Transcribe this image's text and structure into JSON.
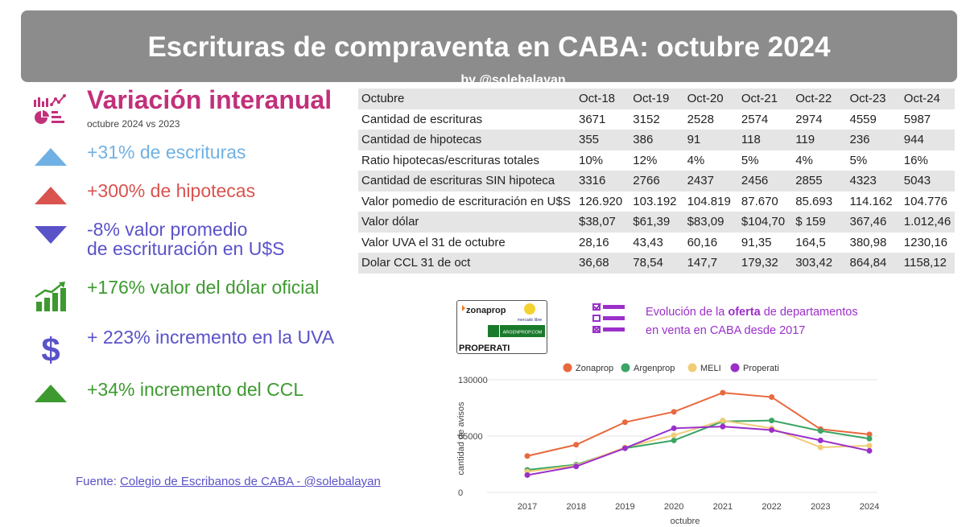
{
  "header": {
    "title": "Escrituras de compraventa en CABA:  octubre 2024",
    "byline": "by @solebalayan"
  },
  "highlights": {
    "title": "Variación  interanual",
    "subtitle": "octubre 2024 vs 2023",
    "items": [
      {
        "icon": "triangle-up-icon",
        "lines": [
          "+31% de escrituras"
        ],
        "color": "#6fb1e4"
      },
      {
        "icon": "triangle-up-icon",
        "lines": [
          "+300% de hipotecas"
        ],
        "color": "#d9534f"
      },
      {
        "icon": "triangle-down-icon",
        "lines": [
          "-8% valor promedio",
          "de escrituración en U$S"
        ],
        "color": "#5a52c8"
      },
      {
        "icon": "growth-chart-icon",
        "lines": [
          "+176% valor del dólar oficial"
        ],
        "color": "#3d9a2f"
      },
      {
        "icon": "dollar-sign-icon",
        "lines": [
          "+ 223% incremento en la UVA"
        ],
        "color": "#5a52c8"
      },
      {
        "icon": "triangle-up-icon",
        "lines": [
          "+34% incremento del CCL"
        ],
        "color": "#3d9a2f"
      }
    ]
  },
  "table": {
    "columns": [
      "Octubre",
      "Oct-18",
      "Oct-19",
      "Oct-20",
      "Oct-21",
      "Oct-22",
      "Oct-23",
      "Oct-24"
    ],
    "rows": [
      [
        "Cantidad de escrituras",
        "3671",
        "3152",
        "2528",
        "2574",
        "2974",
        "4559",
        "5987"
      ],
      [
        "Cantidad de hipotecas",
        "355",
        "386",
        "91",
        "118",
        "119",
        "236",
        "944"
      ],
      [
        "Ratio hipotecas/escrituras totales",
        "10%",
        "12%",
        "4%",
        "5%",
        "4%",
        "5%",
        "16%"
      ],
      [
        "Cantidad de escrituras SIN hipoteca",
        "3316",
        "2766",
        "2437",
        "2456",
        "2855",
        "4323",
        "5043"
      ],
      [
        "Valor pomedio de escrituración en U$S",
        "126.920",
        "103.192",
        "104.819",
        "87.670",
        "85.693",
        "114.162",
        "104.776"
      ],
      [
        "Valor dólar",
        "$38,07",
        "$61,39",
        "$83,09",
        "$104,70",
        "$ 159",
        "367,46",
        "1.012,46"
      ],
      [
        "Valor UVA el 31 de octubre",
        "28,16",
        "43,43",
        "60,16",
        "91,35",
        "164,5",
        "380,98",
        "1230,16"
      ],
      [
        "Dolar CCL 31 de oct",
        "36,68",
        "78,54",
        "147,7",
        "179,32",
        "303,42",
        "864,84",
        "1158,12"
      ]
    ]
  },
  "logos": {
    "zonaprop": "zonaprop",
    "mercadolibre": "mercado libre",
    "argenprop": "ARGENPROP.COM",
    "properati": "PROPERATI"
  },
  "oferta": {
    "before": "Evolución de la ",
    "bold": "oferta",
    "after": " de departamentos",
    "line2": "en venta en CABA desde 2017"
  },
  "footer": {
    "prefix": "Fuente: ",
    "source": "Colegio de  Escribanos de CABA  -  @solebalayan"
  },
  "chart_data": {
    "type": "line",
    "x": [
      "2017",
      "2018",
      "2019",
      "2020",
      "2021",
      "2022",
      "2023",
      "2024"
    ],
    "xlabel": "octubre",
    "ylabel": "cantidad de avisos",
    "ylim": [
      0,
      130000
    ],
    "yticks": [
      "0",
      "65000",
      "130000"
    ],
    "legend_position": "top",
    "series": [
      {
        "name": "Zonaprop",
        "color": "#e8693e",
        "values": [
          42000,
          55000,
          81000,
          93000,
          115000,
          110000,
          73000,
          67000
        ]
      },
      {
        "name": "Argenprop",
        "color": "#3aa565",
        "values": [
          26000,
          32000,
          51000,
          60000,
          82000,
          83000,
          71000,
          62000
        ]
      },
      {
        "name": "MELI",
        "color": "#f0cc76",
        "values": [
          24000,
          31000,
          52000,
          66000,
          83000,
          74000,
          52000,
          54000
        ]
      },
      {
        "name": "Properati",
        "color": "#9b2fc9",
        "values": [
          20000,
          30000,
          51000,
          74000,
          76000,
          72000,
          60000,
          48000
        ]
      }
    ]
  }
}
